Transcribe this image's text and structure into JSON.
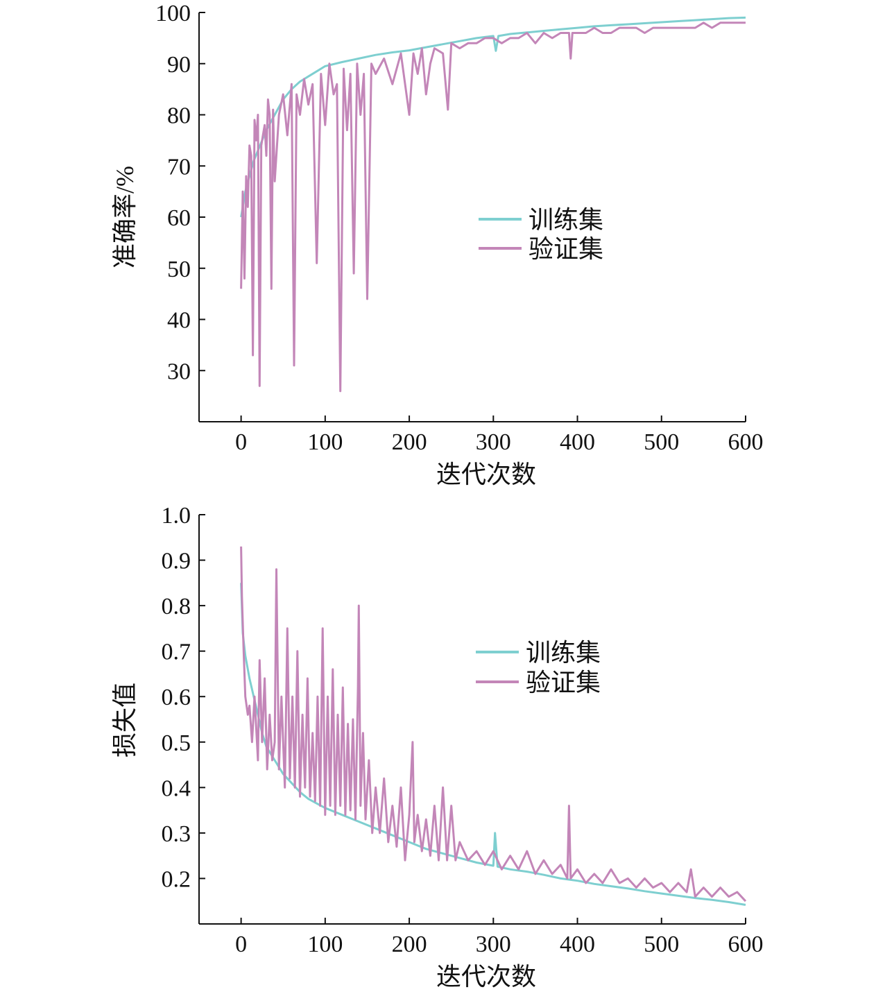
{
  "colors": {
    "train": "#7ecfd0",
    "val": "#c386b8",
    "axis": "#111111"
  },
  "chart_data": [
    {
      "type": "line",
      "xlabel": "迭代次数",
      "ylabel": "准确率/%",
      "xlim": [
        -50,
        600
      ],
      "ylim": [
        20,
        100
      ],
      "x_ticks": [
        "0",
        "100",
        "200",
        "300",
        "400",
        "500",
        "600"
      ],
      "y_ticks": [
        "30",
        "40",
        "50",
        "60",
        "70",
        "80",
        "90",
        "100"
      ],
      "legend": [
        "训练集",
        "验证集"
      ],
      "legend_position": "center-right",
      "series": [
        {
          "name": "训练集",
          "x": [
            0,
            5,
            10,
            15,
            20,
            30,
            40,
            50,
            60,
            70,
            80,
            90,
            100,
            120,
            140,
            160,
            180,
            200,
            220,
            240,
            260,
            280,
            300,
            303,
            306,
            320,
            340,
            360,
            380,
            400,
            420,
            440,
            460,
            480,
            500,
            520,
            540,
            560,
            580,
            600
          ],
          "values": [
            60,
            65,
            68,
            71,
            73,
            77,
            80,
            83,
            85,
            86.5,
            87.5,
            88.5,
            89.5,
            90.3,
            91,
            91.7,
            92.2,
            92.6,
            93.2,
            93.8,
            94.4,
            95,
            95.4,
            92.5,
            95.4,
            95.8,
            96.1,
            96.4,
            96.7,
            97,
            97.3,
            97.5,
            97.7,
            97.9,
            98.1,
            98.3,
            98.5,
            98.7,
            98.9,
            99
          ]
        },
        {
          "name": "验证集",
          "x": [
            0,
            2,
            4,
            6,
            8,
            10,
            12,
            14,
            16,
            18,
            20,
            22,
            24,
            26,
            28,
            30,
            32,
            34,
            36,
            38,
            40,
            45,
            50,
            55,
            60,
            63,
            66,
            70,
            75,
            80,
            85,
            90,
            95,
            100,
            105,
            110,
            114,
            118,
            122,
            126,
            130,
            134,
            138,
            142,
            146,
            150,
            155,
            160,
            170,
            180,
            190,
            200,
            205,
            210,
            215,
            220,
            225,
            230,
            240,
            246,
            250,
            260,
            270,
            280,
            290,
            300,
            310,
            320,
            330,
            340,
            350,
            360,
            370,
            380,
            390,
            392,
            394,
            400,
            410,
            420,
            430,
            440,
            450,
            460,
            470,
            480,
            490,
            500,
            510,
            520,
            530,
            540,
            550,
            560,
            570,
            580,
            590,
            600
          ],
          "values": [
            46,
            65,
            48,
            68,
            62,
            74,
            72,
            33,
            79,
            75,
            80,
            27,
            74,
            76,
            78,
            72,
            83,
            80,
            46,
            81,
            67,
            80,
            84,
            76,
            86,
            31,
            84,
            80,
            87,
            82,
            86,
            51,
            88,
            78,
            90,
            84,
            86,
            26,
            89,
            77,
            88,
            49,
            90,
            80,
            88,
            44,
            90,
            88,
            91,
            86,
            92,
            80,
            92,
            88,
            93,
            84,
            90,
            93,
            92,
            81,
            94,
            93,
            94,
            94,
            95,
            95,
            94,
            95,
            95,
            96,
            94,
            96,
            95,
            96,
            96,
            91,
            96,
            96,
            96,
            97,
            96,
            96,
            97,
            97,
            97,
            96,
            97,
            97,
            97,
            97,
            97,
            97,
            98,
            97,
            98,
            98,
            98,
            98
          ]
        }
      ]
    },
    {
      "type": "line",
      "xlabel": "迭代次数",
      "ylabel": "损失值",
      "xlim": [
        -50,
        600
      ],
      "ylim": [
        0.1,
        1.0
      ],
      "x_ticks": [
        "0",
        "100",
        "200",
        "300",
        "400",
        "500",
        "600"
      ],
      "y_ticks": [
        "0.2",
        "0.3",
        "0.4",
        "0.5",
        "0.6",
        "0.7",
        "0.8",
        "0.9",
        "1.0"
      ],
      "legend": [
        "训练集",
        "验证集"
      ],
      "legend_position": "center-right",
      "series": [
        {
          "name": "训练集",
          "x": [
            0,
            2,
            5,
            10,
            15,
            20,
            25,
            30,
            40,
            50,
            60,
            70,
            80,
            90,
            100,
            120,
            140,
            160,
            180,
            200,
            220,
            240,
            260,
            280,
            300,
            302,
            305,
            320,
            340,
            360,
            380,
            400,
            420,
            440,
            460,
            480,
            500,
            520,
            540,
            560,
            580,
            600
          ],
          "values": [
            0.85,
            0.74,
            0.69,
            0.64,
            0.6,
            0.56,
            0.52,
            0.49,
            0.46,
            0.43,
            0.41,
            0.39,
            0.375,
            0.365,
            0.355,
            0.34,
            0.325,
            0.31,
            0.295,
            0.28,
            0.265,
            0.255,
            0.245,
            0.235,
            0.228,
            0.3,
            0.226,
            0.22,
            0.215,
            0.208,
            0.2,
            0.195,
            0.188,
            0.183,
            0.178,
            0.172,
            0.167,
            0.162,
            0.157,
            0.153,
            0.148,
            0.142
          ]
        },
        {
          "name": "验证集",
          "x": [
            0,
            1,
            3,
            5,
            8,
            10,
            13,
            16,
            20,
            22,
            25,
            28,
            31,
            34,
            37,
            40,
            42,
            45,
            48,
            52,
            55,
            58,
            61,
            64,
            67,
            70,
            73,
            76,
            79,
            82,
            85,
            88,
            91,
            94,
            97,
            100,
            103,
            106,
            109,
            112,
            115,
            118,
            121,
            124,
            127,
            130,
            133,
            136,
            139,
            140,
            142,
            145,
            148,
            152,
            156,
            160,
            165,
            170,
            175,
            180,
            185,
            190,
            195,
            200,
            204,
            206,
            210,
            215,
            220,
            225,
            230,
            235,
            240,
            245,
            250,
            255,
            260,
            270,
            280,
            290,
            300,
            310,
            320,
            330,
            340,
            350,
            360,
            370,
            380,
            388,
            390,
            392,
            400,
            410,
            420,
            430,
            440,
            450,
            460,
            470,
            480,
            490,
            500,
            510,
            520,
            530,
            535,
            540,
            550,
            560,
            570,
            580,
            590,
            600
          ],
          "values": [
            0.93,
            0.82,
            0.7,
            0.6,
            0.56,
            0.58,
            0.5,
            0.6,
            0.46,
            0.68,
            0.5,
            0.64,
            0.44,
            0.56,
            0.46,
            0.5,
            0.88,
            0.44,
            0.6,
            0.4,
            0.75,
            0.42,
            0.6,
            0.4,
            0.7,
            0.38,
            0.56,
            0.4,
            0.64,
            0.38,
            0.52,
            0.37,
            0.6,
            0.36,
            0.75,
            0.34,
            0.6,
            0.36,
            0.66,
            0.34,
            0.56,
            0.36,
            0.62,
            0.34,
            0.54,
            0.35,
            0.55,
            0.33,
            0.62,
            0.8,
            0.36,
            0.52,
            0.33,
            0.46,
            0.3,
            0.4,
            0.3,
            0.42,
            0.28,
            0.36,
            0.27,
            0.4,
            0.24,
            0.34,
            0.5,
            0.28,
            0.34,
            0.26,
            0.33,
            0.25,
            0.36,
            0.24,
            0.4,
            0.24,
            0.36,
            0.24,
            0.28,
            0.24,
            0.26,
            0.23,
            0.26,
            0.22,
            0.25,
            0.22,
            0.26,
            0.21,
            0.24,
            0.21,
            0.23,
            0.2,
            0.36,
            0.2,
            0.22,
            0.19,
            0.21,
            0.19,
            0.22,
            0.19,
            0.2,
            0.18,
            0.2,
            0.18,
            0.19,
            0.17,
            0.19,
            0.17,
            0.22,
            0.16,
            0.18,
            0.16,
            0.18,
            0.16,
            0.17,
            0.15
          ]
        }
      ]
    }
  ]
}
